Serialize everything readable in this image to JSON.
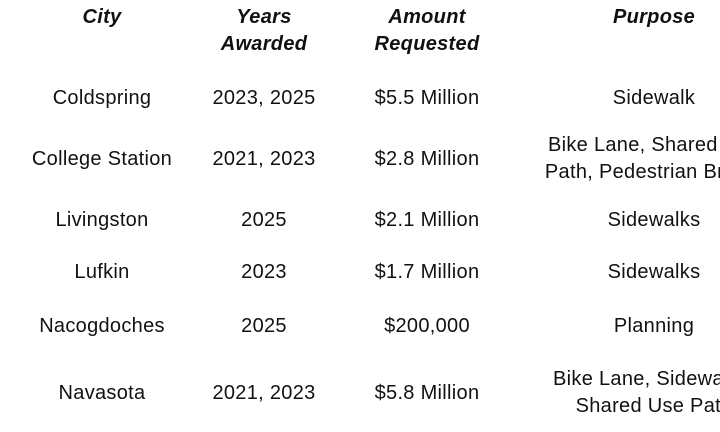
{
  "chart_data": {
    "type": "table",
    "columns": [
      "City",
      "Years Awarded",
      "Amount Requested",
      "Purpose"
    ],
    "rows": [
      {
        "city": "Coldspring",
        "years": "2023, 2025",
        "amount": "$5.5 Million",
        "purpose": "Sidewalk"
      },
      {
        "city": "College Station",
        "years": "2021, 2023",
        "amount": "$2.8 Million",
        "purpose": "Bike Lane, Shared Use Path, Pedestrian Bridge"
      },
      {
        "city": "Livingston",
        "years": "2025",
        "amount": "$2.1 Million",
        "purpose": "Sidewalks"
      },
      {
        "city": "Lufkin",
        "years": "2023",
        "amount": "$1.7 Million",
        "purpose": "Sidewalks"
      },
      {
        "city": "Nacogdoches",
        "years": "2025",
        "amount": "$200,000",
        "purpose": "Planning"
      },
      {
        "city": "Navasota",
        "years": "2021, 2023",
        "amount": "$5.8 Million",
        "purpose": "Bike Lane, Sidewalks, Shared Use Path"
      }
    ],
    "layout": {
      "grid": false,
      "header_style": "bold-italic",
      "text_align": "center"
    },
    "colors": {
      "background": "#ffffff",
      "text": "#111111"
    }
  }
}
